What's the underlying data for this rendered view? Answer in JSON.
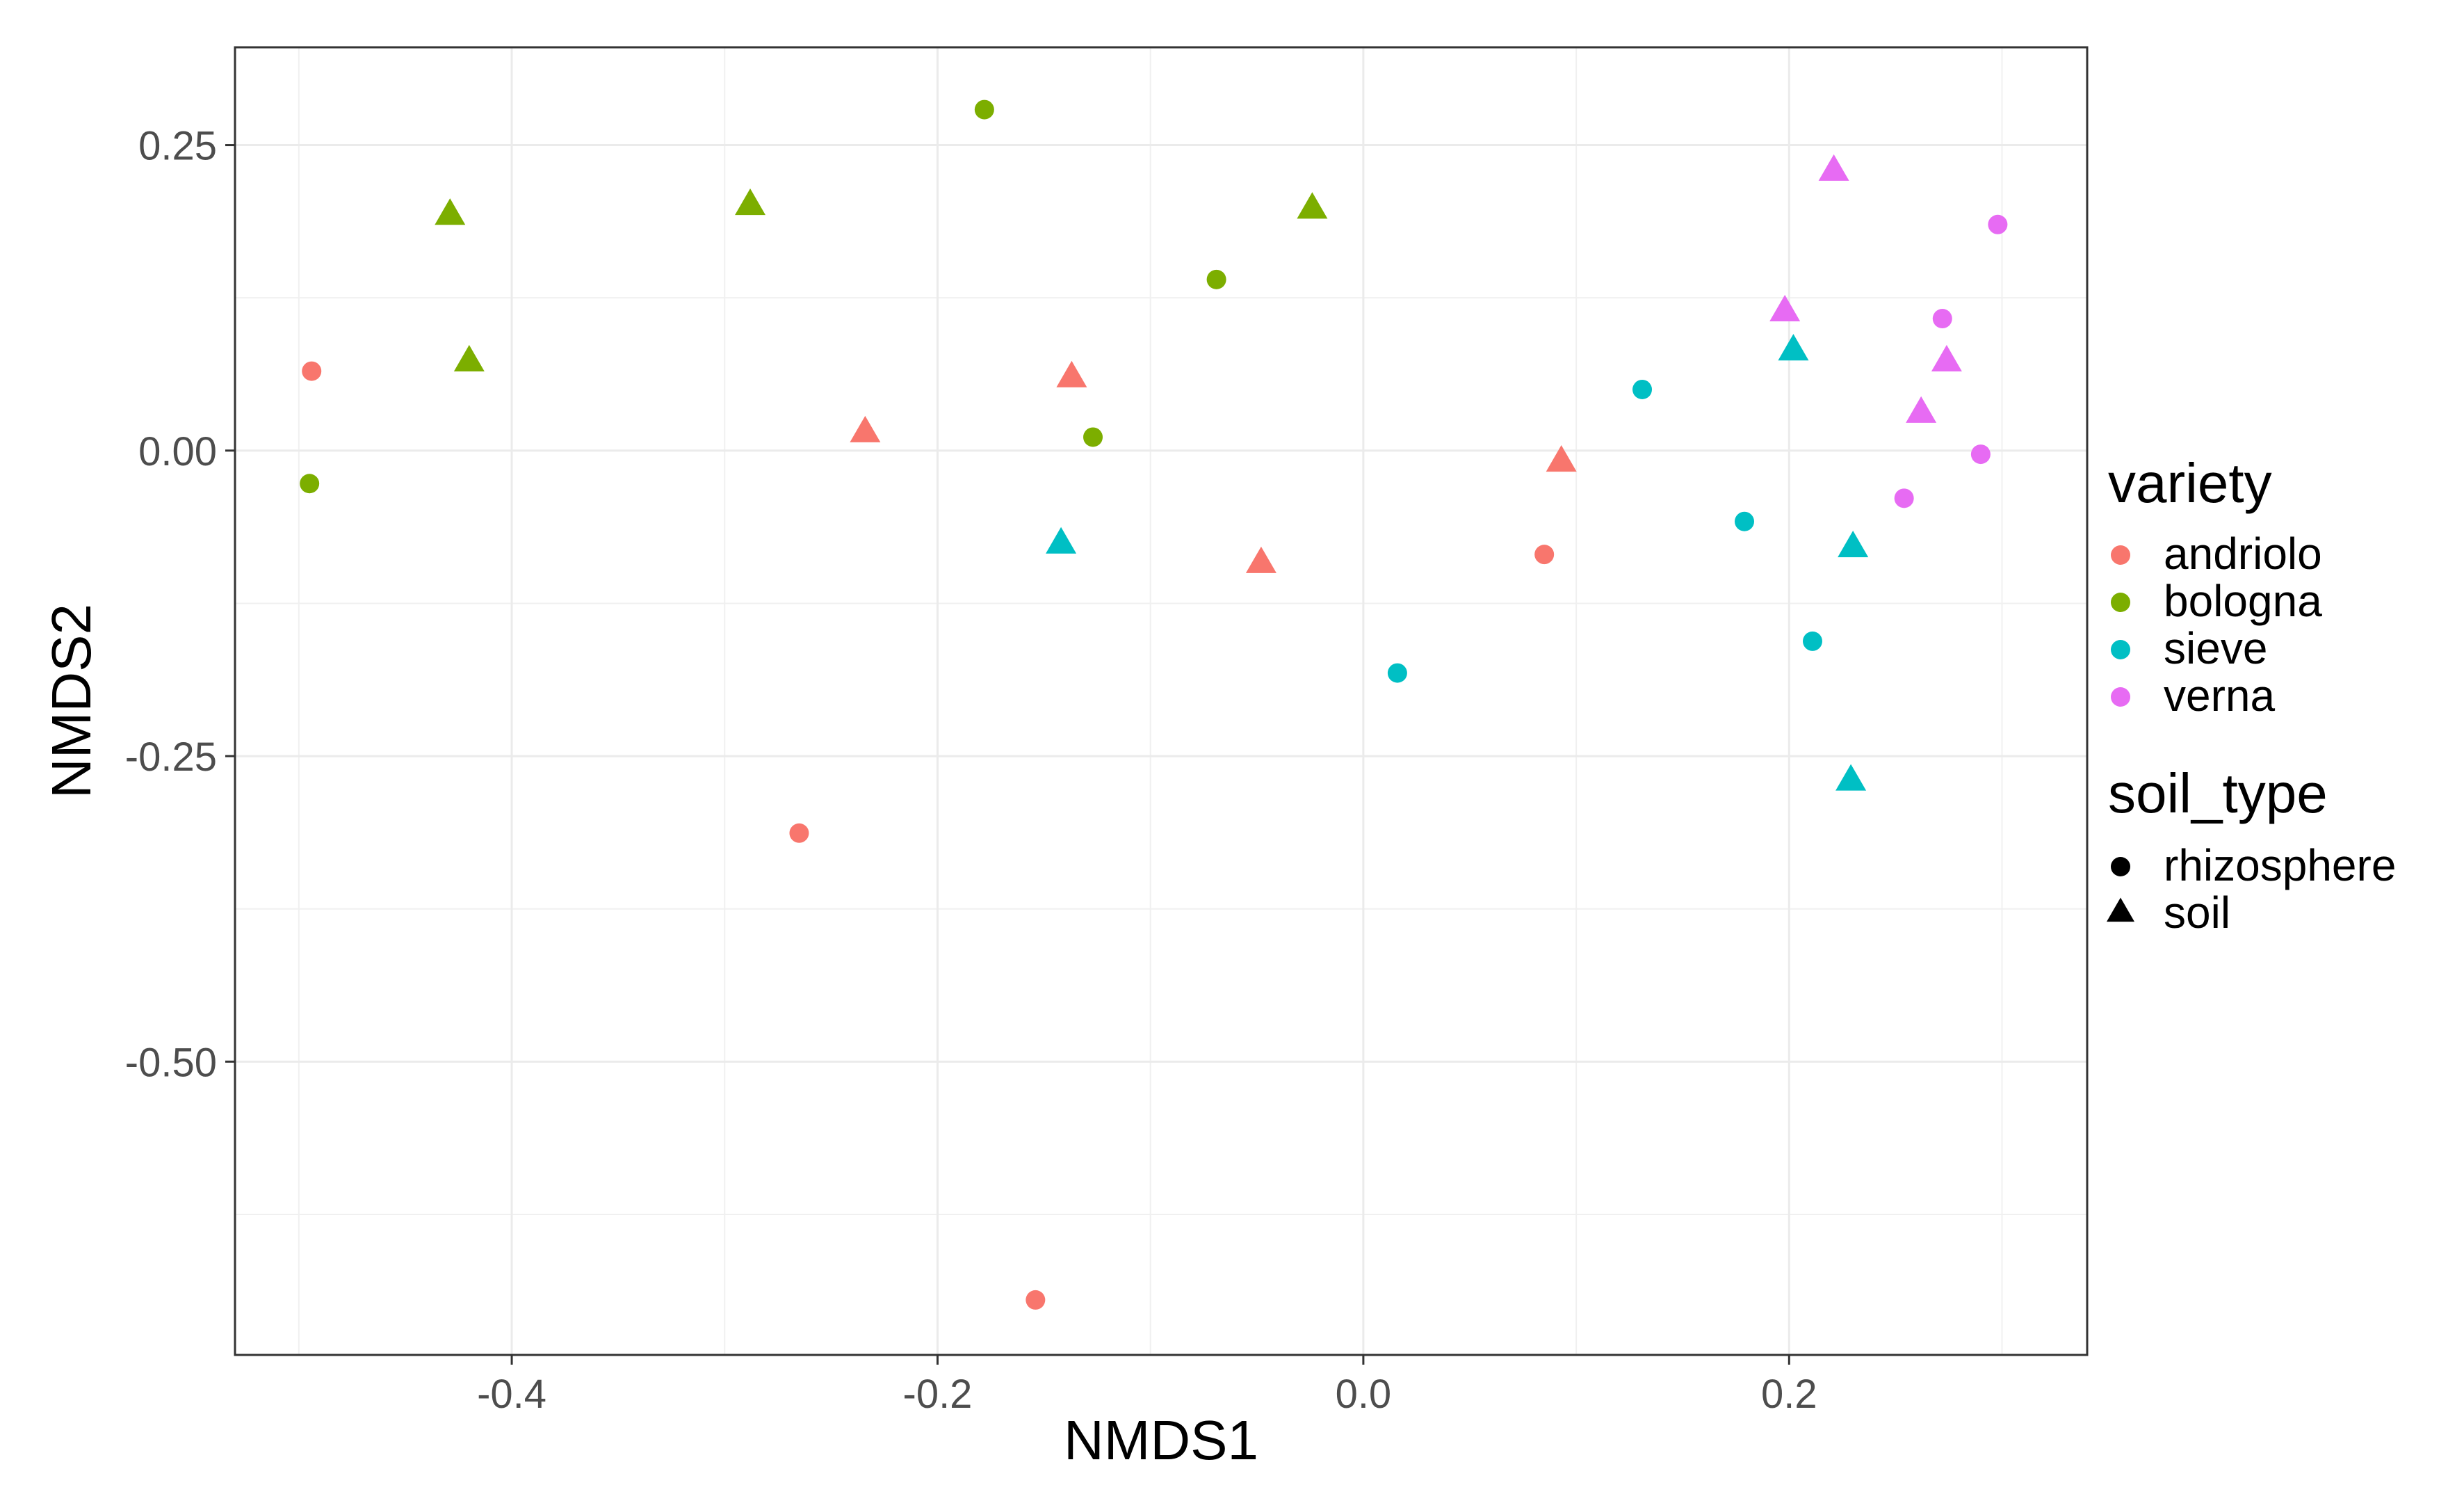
{
  "chart_data": {
    "type": "scatter",
    "xlabel": "NMDS1",
    "ylabel": "NMDS2",
    "xlim": [
      -0.53,
      0.34
    ],
    "ylim": [
      -0.74,
      0.33
    ],
    "x_ticks": [
      -0.4,
      -0.2,
      0.0,
      0.2
    ],
    "x_tick_labels": [
      "-0.4",
      "-0.2",
      "0.0",
      "0.2"
    ],
    "y_ticks": [
      0.25,
      0.0,
      -0.25,
      -0.5
    ],
    "y_tick_labels": [
      "0.25",
      "0.00",
      "-0.25",
      "-0.50"
    ],
    "grid": true,
    "legend_position": "right",
    "legends": [
      {
        "title": "variety",
        "entries": [
          {
            "label": "andriolo",
            "color": "#F8766D"
          },
          {
            "label": "bologna",
            "color": "#7CAE00"
          },
          {
            "label": "sieve",
            "color": "#00BFC4"
          },
          {
            "label": "verna",
            "color": "#E76BF3"
          }
        ]
      },
      {
        "title": "soil_type",
        "entries": [
          {
            "label": "rhizosphere",
            "shape": "circle"
          },
          {
            "label": "soil",
            "shape": "triangle"
          }
        ]
      }
    ],
    "points": [
      {
        "x": -0.494,
        "y": 0.065,
        "variety": "andriolo",
        "soil_type": "rhizosphere"
      },
      {
        "x": -0.265,
        "y": -0.313,
        "variety": "andriolo",
        "soil_type": "rhizosphere"
      },
      {
        "x": -0.154,
        "y": -0.695,
        "variety": "andriolo",
        "soil_type": "rhizosphere"
      },
      {
        "x": 0.085,
        "y": -0.085,
        "variety": "andriolo",
        "soil_type": "rhizosphere"
      },
      {
        "x": -0.234,
        "y": 0.015,
        "variety": "andriolo",
        "soil_type": "soil"
      },
      {
        "x": -0.137,
        "y": 0.06,
        "variety": "andriolo",
        "soil_type": "soil"
      },
      {
        "x": -0.048,
        "y": -0.092,
        "variety": "andriolo",
        "soil_type": "soil"
      },
      {
        "x": 0.093,
        "y": -0.009,
        "variety": "andriolo",
        "soil_type": "soil"
      },
      {
        "x": -0.495,
        "y": -0.027,
        "variety": "bologna",
        "soil_type": "rhizosphere"
      },
      {
        "x": -0.178,
        "y": 0.279,
        "variety": "bologna",
        "soil_type": "rhizosphere"
      },
      {
        "x": -0.069,
        "y": 0.14,
        "variety": "bologna",
        "soil_type": "rhizosphere"
      },
      {
        "x": -0.127,
        "y": 0.011,
        "variety": "bologna",
        "soil_type": "rhizosphere"
      },
      {
        "x": -0.429,
        "y": 0.193,
        "variety": "bologna",
        "soil_type": "soil"
      },
      {
        "x": -0.42,
        "y": 0.073,
        "variety": "bologna",
        "soil_type": "soil"
      },
      {
        "x": -0.288,
        "y": 0.201,
        "variety": "bologna",
        "soil_type": "soil"
      },
      {
        "x": -0.024,
        "y": 0.198,
        "variety": "bologna",
        "soil_type": "soil"
      },
      {
        "x": 0.016,
        "y": -0.182,
        "variety": "sieve",
        "soil_type": "rhizosphere"
      },
      {
        "x": 0.131,
        "y": 0.05,
        "variety": "sieve",
        "soil_type": "rhizosphere"
      },
      {
        "x": 0.179,
        "y": -0.058,
        "variety": "sieve",
        "soil_type": "rhizosphere"
      },
      {
        "x": 0.211,
        "y": -0.156,
        "variety": "sieve",
        "soil_type": "rhizosphere"
      },
      {
        "x": -0.142,
        "y": -0.076,
        "variety": "sieve",
        "soil_type": "soil"
      },
      {
        "x": 0.202,
        "y": 0.082,
        "variety": "sieve",
        "soil_type": "soil"
      },
      {
        "x": 0.23,
        "y": -0.079,
        "variety": "sieve",
        "soil_type": "soil"
      },
      {
        "x": 0.229,
        "y": -0.27,
        "variety": "sieve",
        "soil_type": "soil"
      },
      {
        "x": 0.298,
        "y": 0.185,
        "variety": "verna",
        "soil_type": "rhizosphere"
      },
      {
        "x": 0.272,
        "y": 0.108,
        "variety": "verna",
        "soil_type": "rhizosphere"
      },
      {
        "x": 0.29,
        "y": -0.003,
        "variety": "verna",
        "soil_type": "rhizosphere"
      },
      {
        "x": 0.254,
        "y": -0.039,
        "variety": "verna",
        "soil_type": "rhizosphere"
      },
      {
        "x": 0.221,
        "y": 0.229,
        "variety": "verna",
        "soil_type": "soil"
      },
      {
        "x": 0.198,
        "y": 0.114,
        "variety": "verna",
        "soil_type": "soil"
      },
      {
        "x": 0.274,
        "y": 0.073,
        "variety": "verna",
        "soil_type": "soil"
      },
      {
        "x": 0.262,
        "y": 0.031,
        "variety": "verna",
        "soil_type": "soil"
      }
    ]
  }
}
